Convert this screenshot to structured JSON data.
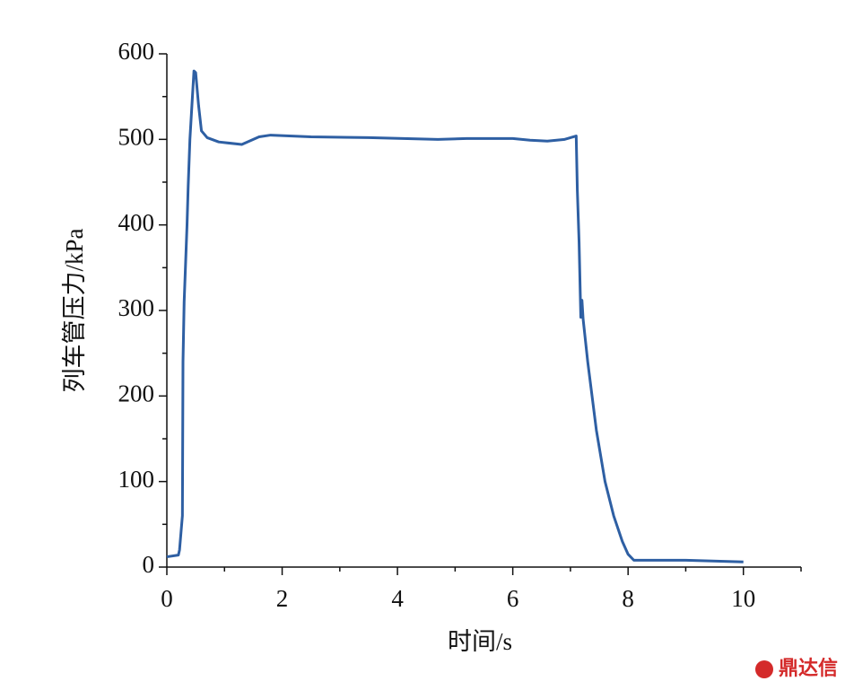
{
  "chart_data": {
    "type": "line",
    "xlabel": "时间/s",
    "ylabel": "列车管压力/kPa",
    "x": [
      0,
      0.2,
      0.22,
      0.27,
      0.28,
      0.3,
      0.35,
      0.37,
      0.4,
      0.47,
      0.5,
      0.55,
      0.6,
      0.7,
      0.9,
      1.3,
      1.6,
      1.8,
      2.5,
      3.5,
      4.7,
      5.2,
      6.0,
      6.3,
      6.6,
      6.9,
      7.1,
      7.12,
      7.15,
      7.18,
      7.2,
      7.22,
      7.3,
      7.45,
      7.6,
      7.75,
      7.9,
      8.0,
      8.1,
      9.0,
      10.0
    ],
    "values": [
      12,
      14,
      20,
      60,
      240,
      310,
      400,
      445,
      500,
      580,
      578,
      540,
      510,
      502,
      497,
      494,
      503,
      505,
      503,
      502,
      500,
      501,
      501,
      499,
      498,
      500,
      504,
      440,
      380,
      292,
      312,
      290,
      240,
      160,
      100,
      60,
      30,
      15,
      8,
      8,
      6
    ],
    "color": "#2e5fa3",
    "xlim": [
      0,
      11
    ],
    "xticks": [
      0,
      2,
      4,
      6,
      8,
      10
    ],
    "xminor_ticks": [
      1,
      3,
      5,
      7,
      9,
      11
    ],
    "ylim": [
      0,
      600
    ],
    "yticks": [
      0,
      100,
      200,
      300,
      400,
      500,
      600
    ],
    "yminor_ticks": [
      50,
      150,
      250,
      350,
      450,
      550
    ],
    "grid": false
  },
  "watermark": "鼎达信"
}
